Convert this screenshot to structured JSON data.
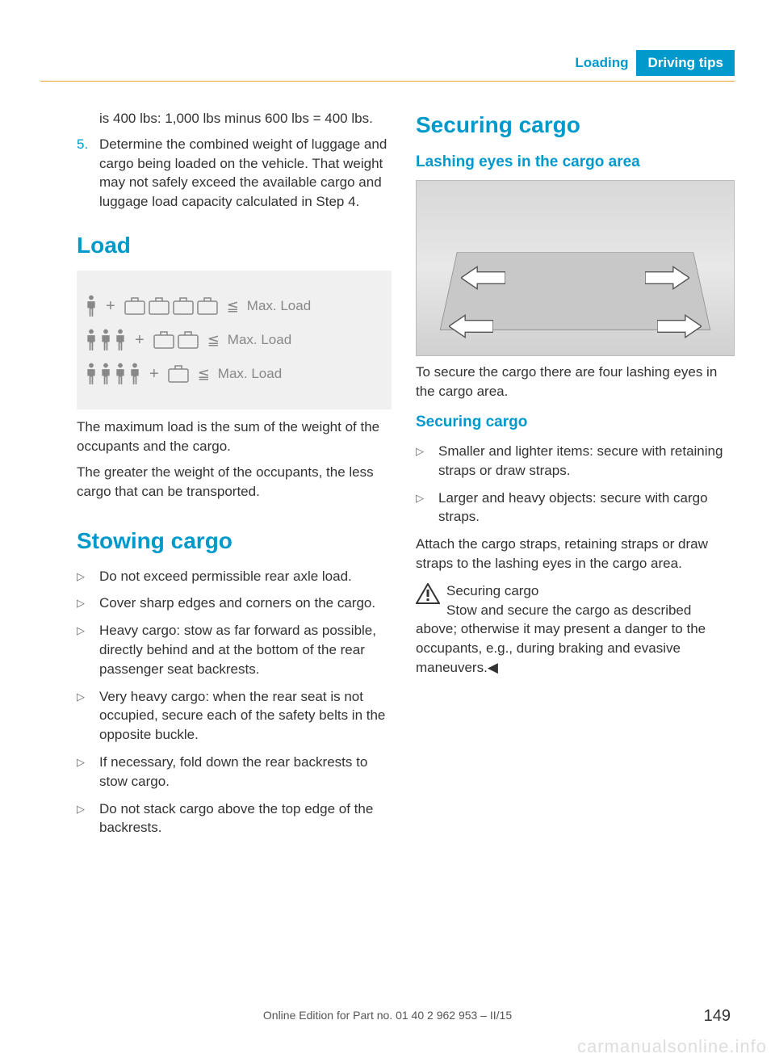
{
  "header": {
    "loading": "Loading",
    "tips": "Driving tips"
  },
  "colors": {
    "accent": "#0099cc",
    "tab_bg": "#0099cc",
    "rule": "#f0a030",
    "watermark": "#dddddd"
  },
  "left": {
    "cont_text": "is 400 lbs: 1,000 lbs minus 600 lbs = 400 lbs.",
    "step5_num": "5.",
    "step5_text": "Determine the combined weight of luggage and cargo being loaded on the vehicle. That weight may not safely exceed the available cargo and luggage load capacity calculated in Step 4.",
    "load_heading": "Load",
    "load_rows": [
      {
        "people": 1,
        "boxes": 4,
        "label": "Max. Load"
      },
      {
        "people": 3,
        "boxes": 2,
        "label": "Max. Load"
      },
      {
        "people": 4,
        "boxes": 1,
        "label": "Max. Load"
      }
    ],
    "load_p1": "The maximum load is the sum of the weight of the occupants and the cargo.",
    "load_p2": "The greater the weight of the occupants, the less cargo that can be transported.",
    "stow_heading": "Stowing cargo",
    "stow_items": [
      "Do not exceed permissible rear axle load.",
      "Cover sharp edges and corners on the cargo.",
      "Heavy cargo: stow as far forward as possible, directly behind and at the bottom of the rear passenger seat backrests.",
      "Very heavy cargo: when the rear seat is not occupied, secure each of the safety belts in the opposite buckle.",
      "If necessary, fold down the rear backrests to stow cargo.",
      "Do not stack cargo above the top edge of the backrests."
    ]
  },
  "right": {
    "securing_heading": "Securing cargo",
    "lashing_heading": "Lashing eyes in the cargo area",
    "lashing_text": "To secure the cargo there are four lashing eyes in the cargo area.",
    "securing_sub": "Securing cargo",
    "securing_items": [
      "Smaller and lighter items: secure with retaining straps or draw straps.",
      "Larger and heavy objects: secure with cargo straps."
    ],
    "securing_p": "Attach the cargo straps, retaining straps or draw straps to the lashing eyes in the cargo area.",
    "warn_title": "Securing cargo",
    "warn_body": "Stow and secure the cargo as described above; otherwise it may present a danger to the occupants, e.g., during braking and evasive maneuvers.◀"
  },
  "footer": {
    "edition": "Online Edition for Part no. 01 40 2 962 953 – II/15",
    "page": "149",
    "watermark": "carmanualsonline.info"
  }
}
